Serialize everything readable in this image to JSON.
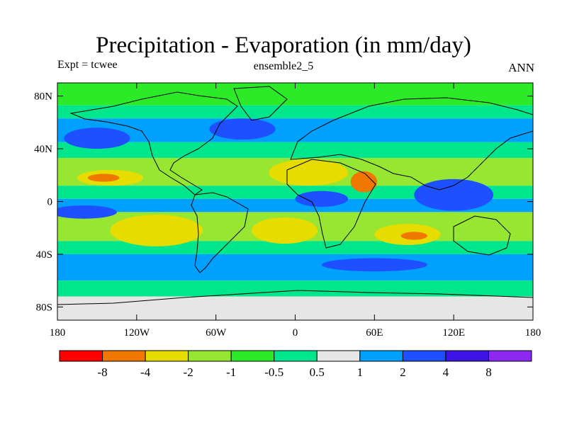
{
  "chart_data": {
    "type": "heatmap",
    "title": "Precipitation - Evaporation (in mm/day)",
    "left_label": "Expt = tcwee",
    "center_label": "ensemble2_5",
    "right_label": "ANN",
    "x_ticks": [
      "180",
      "120W",
      "60W",
      "0",
      "60E",
      "120E",
      "180"
    ],
    "y_ticks": [
      "80N",
      "40N",
      "0",
      "40S",
      "80S"
    ],
    "xlim": [
      -180,
      180
    ],
    "ylim": [
      -90,
      90
    ],
    "colorbar": {
      "labels": [
        "-8",
        "-4",
        "-2",
        "-1",
        "-0.5",
        "0.5",
        "1",
        "2",
        "4",
        "8"
      ],
      "colors": [
        "#ff0000",
        "#f07800",
        "#e6dc00",
        "#96e632",
        "#2dea28",
        "#00e68c",
        "#e6e6e6",
        "#00a0ff",
        "#1e50ff",
        "#3c14e6",
        "#8c28f0"
      ]
    },
    "zonal_bands": [
      {
        "lat_top": 90,
        "lat_bottom": 73,
        "color": "#2dea28"
      },
      {
        "lat_top": 73,
        "lat_bottom": 63,
        "color": "#00e68c"
      },
      {
        "lat_top": 63,
        "lat_bottom": 45,
        "color": "#00a0ff"
      },
      {
        "lat_top": 45,
        "lat_bottom": 33,
        "color": "#00e68c"
      },
      {
        "lat_top": 33,
        "lat_bottom": 12,
        "color": "#96e632"
      },
      {
        "lat_top": 12,
        "lat_bottom": 2,
        "color": "#00e68c"
      },
      {
        "lat_top": 2,
        "lat_bottom": -8,
        "color": "#00a0ff"
      },
      {
        "lat_top": -8,
        "lat_bottom": -30,
        "color": "#96e632"
      },
      {
        "lat_top": -30,
        "lat_bottom": -40,
        "color": "#00e68c"
      },
      {
        "lat_top": -40,
        "lat_bottom": -60,
        "color": "#00a0ff"
      },
      {
        "lat_top": -60,
        "lat_bottom": -72,
        "color": "#00e68c"
      },
      {
        "lat_top": -72,
        "lat_bottom": -90,
        "color": "#e6e6e6"
      }
    ],
    "regions": [
      {
        "name": "north-pacific-low",
        "lon": -150,
        "lat": 48,
        "rx": 25,
        "ry": 8,
        "color": "#1e50ff"
      },
      {
        "name": "north-atlantic-low",
        "lon": -40,
        "lat": 55,
        "rx": 25,
        "ry": 8,
        "color": "#1e50ff"
      },
      {
        "name": "east-pacific-dry",
        "lon": -140,
        "lat": 18,
        "rx": 25,
        "ry": 6,
        "color": "#e6dc00"
      },
      {
        "name": "east-pacific-core",
        "lon": -145,
        "lat": 18,
        "rx": 12,
        "ry": 3,
        "color": "#f07800"
      },
      {
        "name": "itcz-pacific",
        "lon": -160,
        "lat": -8,
        "rx": 25,
        "ry": 5,
        "color": "#1e50ff"
      },
      {
        "name": "south-pacific-dry",
        "lon": -105,
        "lat": -22,
        "rx": 35,
        "ry": 12,
        "color": "#e6dc00"
      },
      {
        "name": "south-atlantic-dry",
        "lon": -8,
        "lat": -22,
        "rx": 25,
        "ry": 10,
        "color": "#e6dc00"
      },
      {
        "name": "sahara-dry",
        "lon": 10,
        "lat": 22,
        "rx": 30,
        "ry": 10,
        "color": "#e6dc00"
      },
      {
        "name": "arabian-dry",
        "lon": 52,
        "lat": 15,
        "rx": 10,
        "ry": 8,
        "color": "#f07800"
      },
      {
        "name": "central-africa-wet",
        "lon": 20,
        "lat": 2,
        "rx": 20,
        "ry": 6,
        "color": "#1e50ff"
      },
      {
        "name": "maritime-continent-wet",
        "lon": 120,
        "lat": 5,
        "rx": 30,
        "ry": 12,
        "color": "#1e50ff"
      },
      {
        "name": "indian-ocean-dry",
        "lon": 85,
        "lat": -25,
        "rx": 25,
        "ry": 8,
        "color": "#e6dc00"
      },
      {
        "name": "indian-ocean-core",
        "lon": 90,
        "lat": -26,
        "rx": 10,
        "ry": 3,
        "color": "#f07800"
      },
      {
        "name": "south-ocean-wet",
        "lon": 60,
        "lat": -48,
        "rx": 40,
        "ry": 5,
        "color": "#1e50ff"
      }
    ]
  }
}
